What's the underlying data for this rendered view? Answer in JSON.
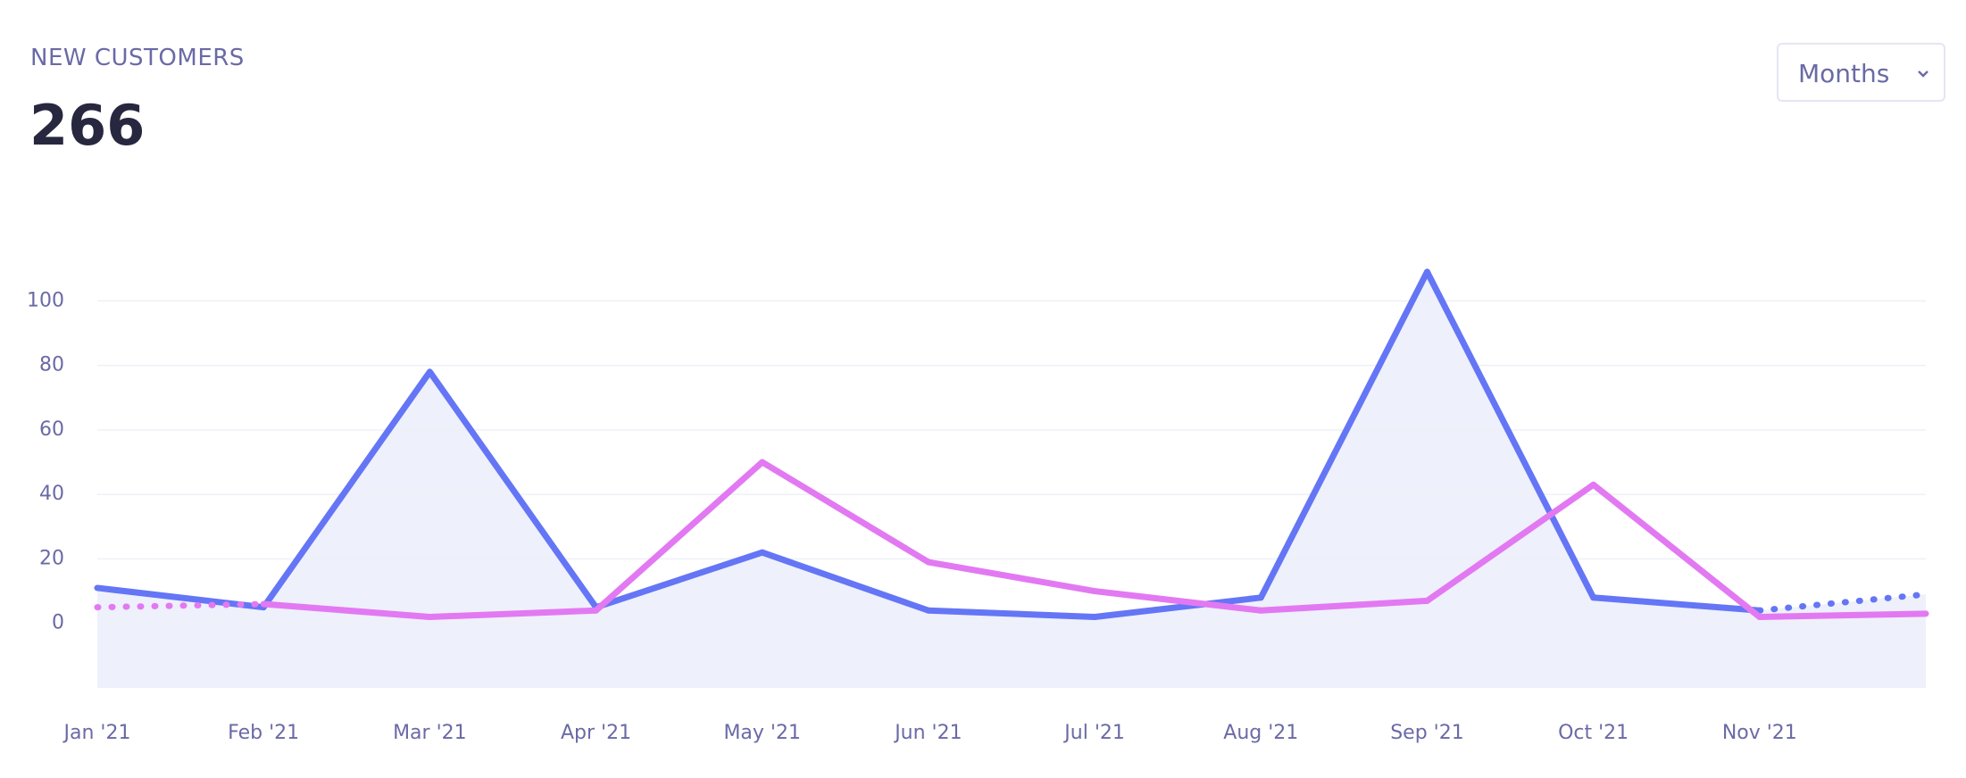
{
  "header": {
    "title": "NEW CUSTOMERS",
    "total": "266",
    "period": "Months"
  },
  "chart_data": {
    "type": "line",
    "categories": [
      "Jan '21",
      "Feb '21",
      "Mar '21",
      "Apr '21",
      "May '21",
      "Jun '21",
      "Jul '21",
      "Aug '21",
      "Sep '21",
      "Oct '21",
      "Nov '21",
      null
    ],
    "series": [
      {
        "color": "#6476f5",
        "area_color": "#eef0fc",
        "values": [
          11,
          5,
          78,
          5,
          22,
          4,
          2,
          8,
          109,
          8,
          4,
          9
        ],
        "dotted_segments": [
          11
        ]
      },
      {
        "color": "#e279f2",
        "values": [
          5,
          6,
          2,
          4,
          50,
          19,
          10,
          4,
          7,
          43,
          2,
          3
        ],
        "dotted_segments": [
          1
        ]
      }
    ],
    "ylim": [
      -20,
      120
    ],
    "yticks": [
      0,
      20,
      40,
      60,
      80,
      100
    ],
    "grid": true
  }
}
